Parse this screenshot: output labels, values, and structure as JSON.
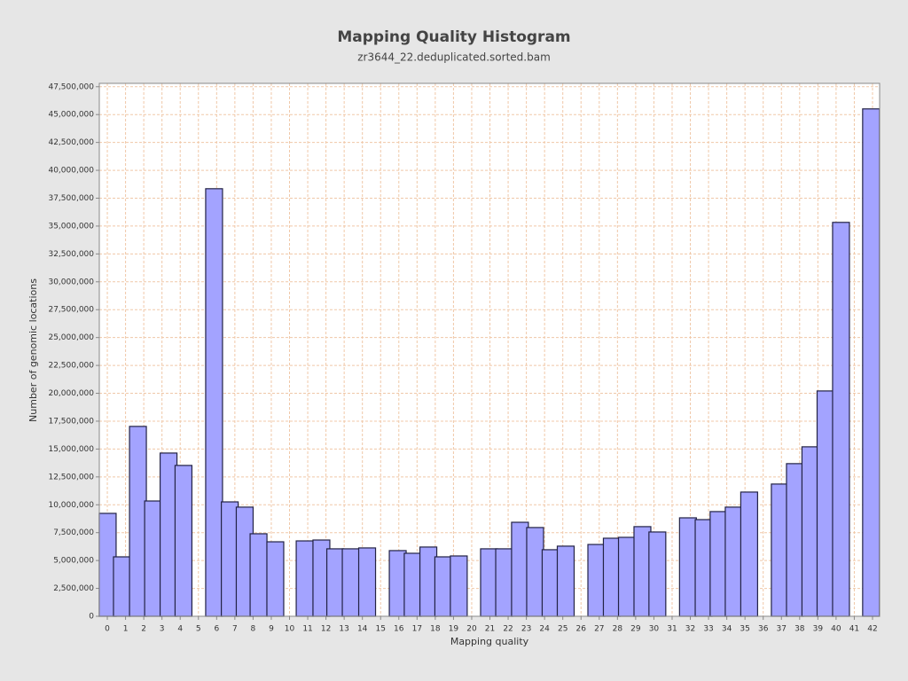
{
  "chart_data": {
    "type": "bar",
    "title": "Mapping Quality Histogram",
    "subtitle": "zr3644_22.deduplicated.sorted.bam",
    "x_label": "Mapping quality",
    "y_label": "Number of genomic locations",
    "x": [
      0.02,
      0.8,
      1.68,
      2.51,
      3.36,
      4.18,
      5.86,
      6.72,
      7.54,
      8.3,
      9.22,
      10.83,
      11.75,
      12.51,
      13.36,
      14.26,
      15.94,
      16.76,
      17.62,
      18.44,
      19.29,
      20.95,
      21.78,
      22.65,
      23.48,
      24.33,
      25.16,
      26.84,
      27.69,
      28.52,
      29.37,
      30.19,
      31.87,
      32.73,
      33.55,
      34.38,
      35.23,
      36.91,
      37.74,
      38.59,
      39.42,
      40.27,
      41.92
    ],
    "values": [
      9230000,
      5330000,
      17030000,
      10340000,
      14640000,
      13530000,
      38350000,
      10260000,
      9790000,
      7400000,
      6680000,
      6760000,
      6840000,
      6050000,
      6050000,
      6130000,
      5890000,
      5650000,
      6210000,
      5330000,
      5410000,
      6050000,
      6050000,
      8430000,
      7960000,
      5970000,
      6290000,
      6440000,
      7000000,
      7080000,
      8040000,
      7560000,
      8830000,
      8670000,
      9390000,
      9790000,
      11140000,
      11860000,
      13690000,
      15200000,
      20210000,
      35330000,
      45510000
    ],
    "color": "#a3a3ff",
    "xlim": [
      -0.44,
      42.39
    ],
    "xticks": [
      0,
      1,
      2,
      3,
      4,
      5,
      6,
      7,
      8,
      9,
      10,
      11,
      12,
      13,
      14,
      15,
      16,
      17,
      18,
      19,
      20,
      21,
      22,
      23,
      24,
      25,
      26,
      27,
      28,
      29,
      30,
      31,
      32,
      33,
      34,
      35,
      36,
      37,
      38,
      39,
      40,
      41,
      42
    ],
    "ylim": [
      0,
      47800000
    ],
    "yticks": [
      0,
      {
        "value": 2500000,
        "label": "2,500,000"
      },
      {
        "value": 5000000,
        "label": "5,000,000"
      },
      {
        "value": 7500000,
        "label": "7,500,000"
      },
      {
        "value": 10000000,
        "label": "10,000,000"
      },
      {
        "value": 12500000,
        "label": "12,500,000"
      },
      {
        "value": 15000000,
        "label": "15,000,000"
      },
      {
        "value": 17500000,
        "label": "17,500,000"
      },
      {
        "value": 20000000,
        "label": "20,000,000"
      },
      {
        "value": 22500000,
        "label": "22,500,000"
      },
      {
        "value": 25000000,
        "label": "25,000,000"
      },
      {
        "value": 27500000,
        "label": "27,500,000"
      },
      {
        "value": 30000000,
        "label": "30,000,000"
      },
      {
        "value": 32500000,
        "label": "32,500,000"
      },
      {
        "value": 35000000,
        "label": "35,000,000"
      },
      {
        "value": 37500000,
        "label": "37,500,000"
      },
      {
        "value": 40000000,
        "label": "40,000,000"
      },
      {
        "value": 42500000,
        "label": "42,500,000"
      },
      {
        "value": 45000000,
        "label": "45,000,000"
      },
      {
        "value": 47500000,
        "label": "47,500,000"
      }
    ],
    "grid": true
  }
}
